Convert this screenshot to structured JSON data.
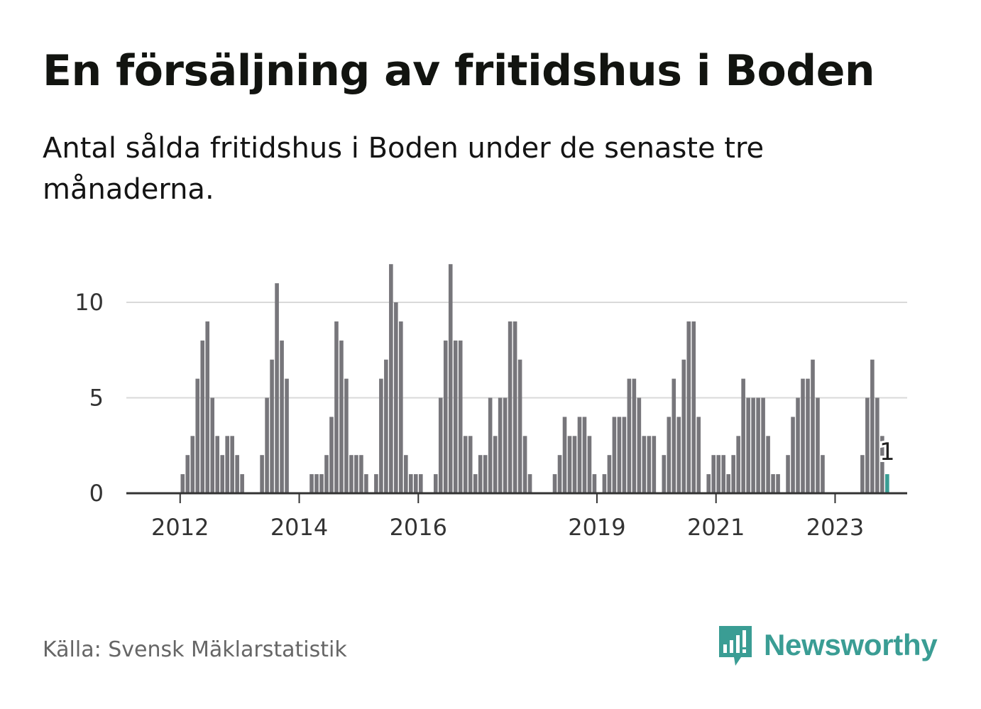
{
  "header": {
    "title": "En försäljning av fritidshus i Boden",
    "subtitle": "Antal sålda fritidshus i Boden under de senaste tre månaderna."
  },
  "footer": {
    "source": "Källa: Svensk Mäklarstatistik",
    "brand": "Newsworthy",
    "brand_icon": "bar-chart-speech-bubble-icon"
  },
  "colors": {
    "bar": "#77767b",
    "highlight": "#3a9d94",
    "grid": "#d9d9d9",
    "axis": "#333333"
  },
  "chart_data": {
    "type": "bar",
    "title": "En försäljning av fritidshus i Boden",
    "xlabel": "",
    "ylabel": "",
    "ylim": [
      0,
      12
    ],
    "yticks": [
      0,
      5,
      10
    ],
    "xticks": [
      "2012",
      "2014",
      "2016",
      "2019",
      "2021",
      "2023"
    ],
    "grid": true,
    "legend": "none",
    "start_period": "2011-04",
    "series": [
      {
        "values": [
          0,
          0,
          0,
          0,
          0,
          0,
          0,
          0,
          0,
          1,
          2,
          3,
          6,
          8,
          9,
          5,
          3,
          2,
          3,
          3,
          2,
          1,
          0,
          0,
          0,
          2,
          5,
          7,
          11,
          8,
          6,
          0,
          0,
          0,
          0,
          1,
          1,
          1,
          2,
          4,
          9,
          8,
          6,
          2,
          2,
          2,
          1,
          0,
          1,
          6,
          7,
          12,
          10,
          9,
          2,
          1,
          1,
          1,
          0,
          0,
          1,
          5,
          8,
          12,
          8,
          8,
          3,
          3,
          1,
          2,
          2,
          5,
          3,
          5,
          5,
          9,
          9,
          7,
          3,
          1,
          0,
          0,
          0,
          0,
          1,
          2,
          4,
          3,
          3,
          4,
          4,
          3,
          1,
          0,
          1,
          2,
          4,
          4,
          4,
          6,
          6,
          5,
          3,
          3,
          3,
          0,
          2,
          4,
          6,
          4,
          7,
          9,
          9,
          4,
          0,
          1,
          2,
          2,
          2,
          1,
          2,
          3,
          6,
          5,
          5,
          5,
          5,
          3,
          1,
          1,
          0,
          2,
          4,
          5,
          6,
          6,
          7,
          5,
          2,
          0,
          0,
          0,
          0,
          0,
          0,
          0,
          2,
          5,
          7,
          5,
          3,
          1
        ]
      }
    ],
    "highlight": {
      "index": 151,
      "value": 1,
      "label": "1"
    }
  }
}
